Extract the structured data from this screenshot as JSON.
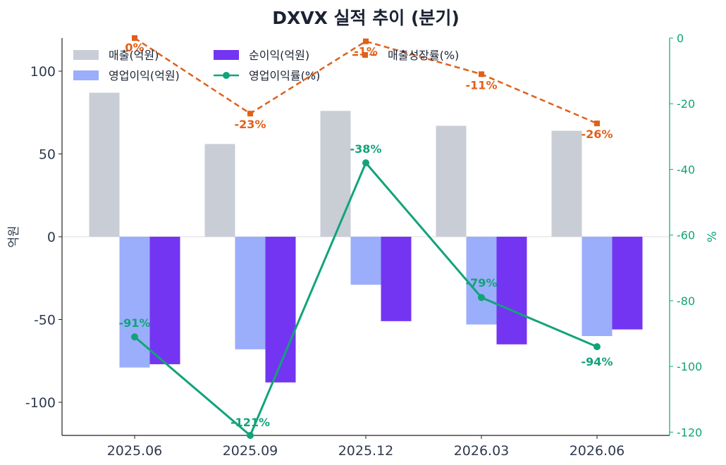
{
  "chart_data": {
    "type": "bar",
    "title": "DXVX 실적 추이 (분기)",
    "categories": [
      "2025.06",
      "2025.09",
      "2025.12",
      "2026.03",
      "2026.06"
    ],
    "ylabel": "억원",
    "y2label": "%",
    "ylim": [
      -120,
      120
    ],
    "y2lim": [
      -121,
      0
    ],
    "yticks": [
      -100,
      -50,
      0,
      50,
      100
    ],
    "y2ticks": [
      0,
      -20,
      -40,
      -60,
      -80,
      -100,
      -120
    ],
    "bar_series": [
      {
        "name": "매출(억원)",
        "values": [
          87,
          56,
          76,
          67,
          64
        ],
        "color": "#c9cdd6"
      },
      {
        "name": "영업이익(억원)",
        "values": [
          -79,
          -68,
          -29,
          -53,
          -60
        ],
        "color": "#9aaefb"
      },
      {
        "name": "순이익(억원)",
        "values": [
          -77,
          -88,
          -51,
          -65,
          -56
        ],
        "color": "#7335f2"
      }
    ],
    "line_series": [
      {
        "name": "영업이익률(%)",
        "values": [
          -91,
          -121,
          -38,
          -79,
          -94
        ],
        "labels": [
          "-91%",
          "-121%",
          "-38%",
          "-79%",
          "-94%"
        ],
        "color": "#12a37a",
        "style": "solid",
        "marker": "circle"
      },
      {
        "name": "매출성장률(%)",
        "values": [
          0,
          -23,
          -1,
          -11,
          -26
        ],
        "labels": [
          "0%",
          "-23%",
          "-1%",
          "-11%",
          "-26%"
        ],
        "color": "#e0601a",
        "style": "dashed",
        "marker": "square"
      }
    ],
    "legend": "top-left",
    "grid": false
  }
}
